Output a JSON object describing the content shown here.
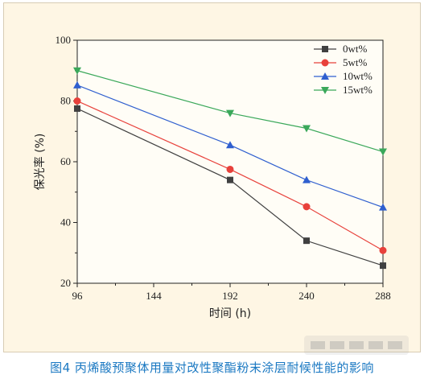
{
  "caption": "图4 丙烯酸预聚体用量对改性聚酯粉末涂层耐候性能的影响",
  "watermark": "嘉峪检测网",
  "chart_data": {
    "type": "line",
    "xlabel": "时间 (h)",
    "ylabel": "保光率 (%)",
    "xlim": [
      96,
      288
    ],
    "ylim": [
      20,
      100
    ],
    "x_ticks": [
      96,
      144,
      192,
      240,
      288
    ],
    "y_ticks": [
      20,
      40,
      60,
      80,
      100
    ],
    "grid": false,
    "legend_position": "top-right",
    "x": [
      96,
      192,
      240,
      288
    ],
    "series": [
      {
        "name": "0wt%",
        "color": "#404040",
        "marker": "square",
        "values": [
          77.5,
          54,
          34,
          25.8
        ]
      },
      {
        "name": "5wt%",
        "color": "#e8413b",
        "marker": "circle",
        "values": [
          80,
          57.5,
          45.2,
          30.8
        ]
      },
      {
        "name": "10wt%",
        "color": "#2f5fcf",
        "marker": "triangle-up",
        "values": [
          85.2,
          65.5,
          54,
          45
        ]
      },
      {
        "name": "15wt%",
        "color": "#3aa85a",
        "marker": "triangle-down",
        "values": [
          90,
          76,
          71,
          63.3
        ]
      }
    ]
  }
}
